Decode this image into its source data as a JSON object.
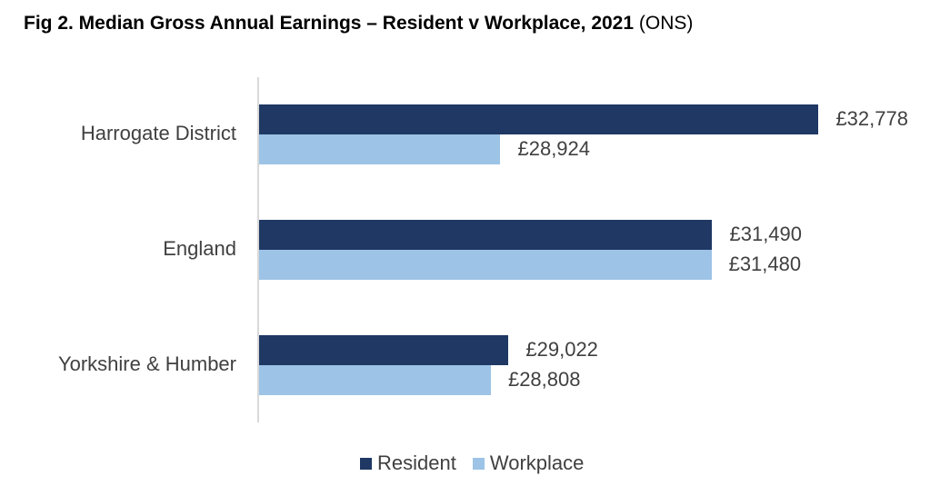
{
  "title": {
    "bold": "Fig 2. Median Gross Annual Earnings – Resident v Workplace, 2021",
    "source": "(ONS)"
  },
  "colors": {
    "resident": "#1f3864",
    "workplace": "#9dc3e6",
    "axis": "#d9d9d9",
    "text": "#404040"
  },
  "legend": {
    "resident": "Resident",
    "workplace": "Workplace"
  },
  "labels": {
    "harrogate": "Harrogate District",
    "england": "England",
    "yorkshire": "Yorkshire & Humber",
    "harrogate_res": "£32,778",
    "harrogate_wp": "£28,924",
    "england_res": "£31,490",
    "england_wp": "£31,480",
    "yorkshire_res": "£29,022",
    "yorkshire_wp": "£28,808"
  },
  "chart_data": {
    "type": "bar",
    "orientation": "horizontal",
    "title": "Fig 2. Median Gross Annual Earnings – Resident v Workplace, 2021 (ONS)",
    "categories": [
      "Harrogate District",
      "England",
      "Yorkshire & Humber"
    ],
    "series": [
      {
        "name": "Resident",
        "values": [
          32778,
          31490,
          29022
        ],
        "color": "#1f3864"
      },
      {
        "name": "Workplace",
        "values": [
          28924,
          31480,
          28808
        ],
        "color": "#9dc3e6"
      }
    ],
    "value_labels": true,
    "value_prefix": "£",
    "xlabel": "",
    "ylabel": "",
    "xlim": [
      26000,
      33500
    ],
    "grid": false,
    "axis_visible": false,
    "legend_position": "bottom"
  }
}
